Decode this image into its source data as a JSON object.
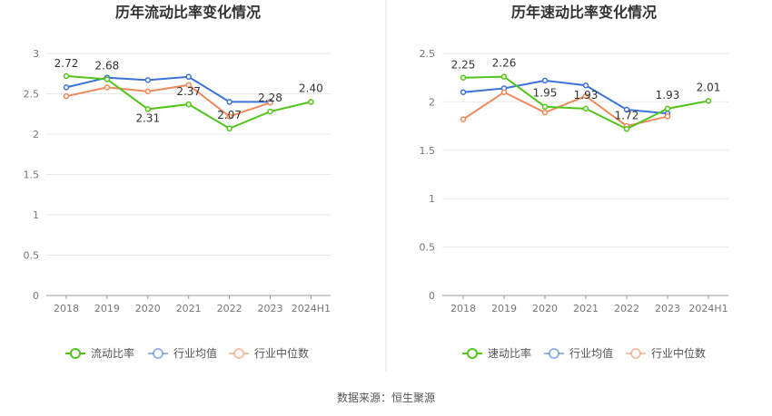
{
  "source_label": "数据来源：恒生聚源",
  "chart_data": [
    {
      "type": "line",
      "title": "历年流动比率变化情况",
      "categories": [
        "2018",
        "2019",
        "2020",
        "2021",
        "2022",
        "2023",
        "2024H1"
      ],
      "ylim": [
        0,
        3
      ],
      "yticks": [
        "0",
        "0.5",
        "1",
        "1.5",
        "2",
        "2.5",
        "3"
      ],
      "ytick_values": [
        0,
        0.5,
        1,
        1.5,
        2,
        2.5,
        3
      ],
      "grid": true,
      "legend_position": "bottom",
      "series": [
        {
          "name": "流动比率",
          "color": "#52c41a",
          "highlight": true,
          "values": [
            2.72,
            2.68,
            2.31,
            2.37,
            2.07,
            2.28,
            2.4
          ],
          "labels": [
            "2.72",
            "2.68",
            "2.31",
            "2.37",
            "2.07",
            "2.28",
            "2.40"
          ]
        },
        {
          "name": "行业均值",
          "color": "#3b73d8",
          "values": [
            2.58,
            2.7,
            2.67,
            2.71,
            2.4,
            2.4,
            null
          ]
        },
        {
          "name": "行业中位数",
          "color": "#f08a5d",
          "values": [
            2.47,
            2.58,
            2.53,
            2.61,
            2.22,
            2.39,
            null
          ]
        }
      ]
    },
    {
      "type": "line",
      "title": "历年速动比率变化情况",
      "categories": [
        "2018",
        "2019",
        "2020",
        "2021",
        "2022",
        "2023",
        "2024H1"
      ],
      "ylim": [
        0,
        2.5
      ],
      "yticks": [
        "0",
        "0.5",
        "1",
        "1.5",
        "2",
        "2.5"
      ],
      "ytick_values": [
        0,
        0.5,
        1,
        1.5,
        2,
        2.5
      ],
      "grid": true,
      "legend_position": "bottom",
      "series": [
        {
          "name": "速动比率",
          "color": "#52c41a",
          "highlight": true,
          "values": [
            2.25,
            2.26,
            1.95,
            1.93,
            1.72,
            1.93,
            2.01
          ],
          "labels": [
            "2.25",
            "2.26",
            "1.95",
            "1.93",
            "1.72",
            "1.93",
            "2.01"
          ]
        },
        {
          "name": "行业均值",
          "color": "#3b73d8",
          "values": [
            2.1,
            2.14,
            2.22,
            2.17,
            1.92,
            1.88,
            null
          ]
        },
        {
          "name": "行业中位数",
          "color": "#f08a5d",
          "values": [
            1.82,
            2.1,
            1.89,
            2.06,
            1.75,
            1.85,
            null
          ]
        }
      ]
    }
  ]
}
